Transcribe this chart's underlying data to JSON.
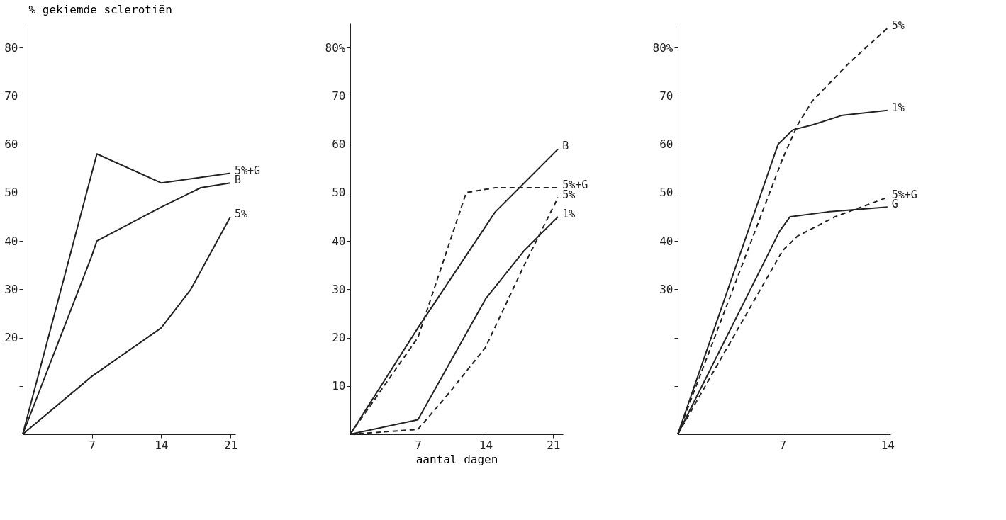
{
  "chart_data": [
    {
      "type": "line",
      "ylabel": "% gekiemde sclerotiën",
      "xlim": [
        0,
        21.5
      ],
      "xticks": [
        7,
        14,
        21
      ],
      "ylim": [
        0,
        85
      ],
      "yticks": [
        {
          "value": 10,
          "label": null
        },
        20,
        30,
        40,
        50,
        60,
        70,
        80
      ],
      "grid": false,
      "legend": false,
      "marker": "none",
      "series": [
        {
          "name": "5%+G",
          "color": "#222222",
          "line_style": "solid",
          "x": [
            0,
            7.5,
            14,
            21
          ],
          "values": [
            0,
            58,
            52,
            54
          ]
        },
        {
          "name": "B",
          "color": "#222222",
          "line_style": "solid",
          "x": [
            0,
            7,
            7.5,
            14,
            18,
            21
          ],
          "values": [
            0,
            37,
            40,
            47,
            51,
            52
          ]
        },
        {
          "name": "5%",
          "color": "#222222",
          "line_style": "solid",
          "x": [
            0,
            7,
            14,
            17,
            21
          ],
          "values": [
            0,
            12,
            22,
            30,
            45
          ]
        }
      ]
    },
    {
      "type": "line",
      "xlabel": "aantal dagen",
      "xlim": [
        0,
        22
      ],
      "xticks": [
        7,
        14,
        21
      ],
      "ylim": [
        0,
        85
      ],
      "yticks": [
        10,
        20,
        30,
        40,
        50,
        60,
        70,
        {
          "value": 80,
          "label": "80%"
        }
      ],
      "grid": false,
      "legend": false,
      "marker": "none",
      "series": [
        {
          "name": "B",
          "color": "#222222",
          "line_style": "solid",
          "x": [
            0,
            7,
            15,
            21.5
          ],
          "values": [
            0,
            22,
            46,
            59
          ]
        },
        {
          "name": "1%",
          "color": "#222222",
          "line_style": "solid",
          "x": [
            0,
            7,
            14,
            18,
            21.5
          ],
          "values": [
            0,
            3,
            28,
            38,
            45
          ]
        },
        {
          "name": "5%+G",
          "color": "#222222",
          "line_style": "dashed",
          "x": [
            0,
            7,
            9,
            12,
            15,
            21.5
          ],
          "values": [
            0,
            20,
            32,
            50,
            51,
            51
          ]
        },
        {
          "name": "5%",
          "color": "#222222",
          "line_style": "dashed",
          "x": [
            0,
            7,
            10,
            14,
            18,
            21.5
          ],
          "values": [
            0,
            1,
            8,
            18,
            35,
            49
          ]
        }
      ]
    },
    {
      "type": "line",
      "xlim": [
        0,
        14.2
      ],
      "xticks": [
        7,
        14
      ],
      "ylim": [
        0,
        85
      ],
      "yticks": [
        {
          "value": 10,
          "label": null
        },
        {
          "value": 20,
          "label": null
        },
        30,
        40,
        50,
        60,
        70,
        {
          "value": 80,
          "label": "80%"
        }
      ],
      "grid": false,
      "legend": false,
      "marker": "none",
      "series": [
        {
          "name": "5%",
          "color": "#222222",
          "line_style": "dashed",
          "x": [
            0,
            7,
            8,
            9,
            11.5,
            14
          ],
          "values": [
            0,
            57,
            64,
            69,
            77,
            84
          ]
        },
        {
          "name": "1%",
          "color": "#222222",
          "line_style": "solid",
          "x": [
            0,
            6.7,
            7.7,
            9,
            11,
            14
          ],
          "values": [
            0,
            60,
            63,
            64,
            66,
            67
          ]
        },
        {
          "name": "G",
          "color": "#222222",
          "line_style": "solid",
          "x": [
            0,
            6.8,
            7.5,
            10,
            14
          ],
          "values": [
            0,
            42,
            45,
            46,
            47
          ]
        },
        {
          "name": "5%+G",
          "color": "#222222",
          "line_style": "dashed",
          "x": [
            0,
            7,
            8,
            10.5,
            14
          ],
          "values": [
            0,
            38,
            41,
            45,
            49
          ]
        }
      ]
    }
  ]
}
